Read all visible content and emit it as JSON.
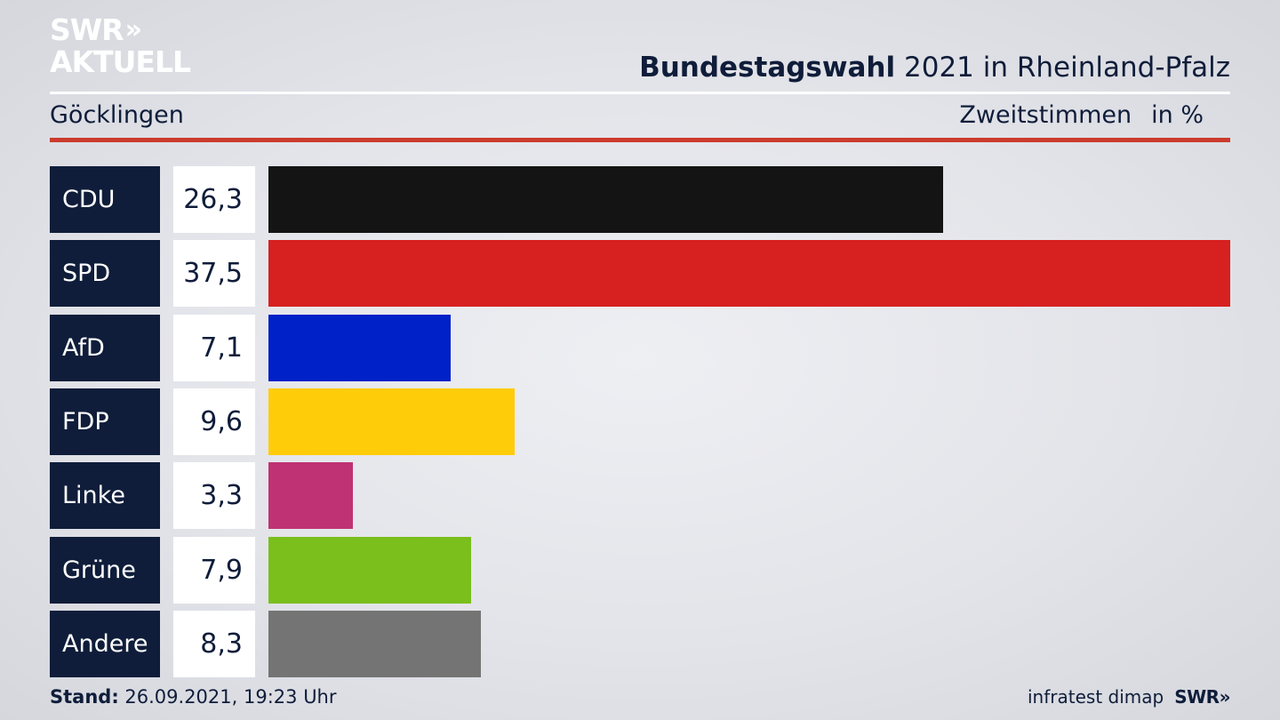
{
  "brand": {
    "logo_line1": "SWR",
    "logo_chevrons": "»",
    "logo_line2": "AKTUELL"
  },
  "header": {
    "title_bold": "Bundestagswahl",
    "title_rest": "2021 in Rheinland-Pfalz",
    "location": "Göcklingen",
    "metric": "Zweitstimmen",
    "unit": "in %"
  },
  "chart_data": {
    "type": "bar",
    "orientation": "horizontal",
    "categories": [
      "CDU",
      "SPD",
      "AfD",
      "FDP",
      "Linke",
      "Grüne",
      "Andere"
    ],
    "values": [
      26.3,
      37.5,
      7.1,
      9.6,
      3.3,
      7.9,
      8.3
    ],
    "value_labels": [
      "26,3",
      "37,5",
      "7,1",
      "9,6",
      "3,3",
      "7,9",
      "8,3"
    ],
    "colors": [
      "#141414",
      "#d72020",
      "#0020c8",
      "#ffcc0a",
      "#bf3273",
      "#7abf1c",
      "#747474"
    ],
    "xlim": [
      0,
      37.5
    ]
  },
  "footer": {
    "stand_label": "Stand:",
    "stand_value": "26.09.2021, 19:23 Uhr",
    "source": "infratest dimap",
    "source_brand": "SWR»"
  }
}
